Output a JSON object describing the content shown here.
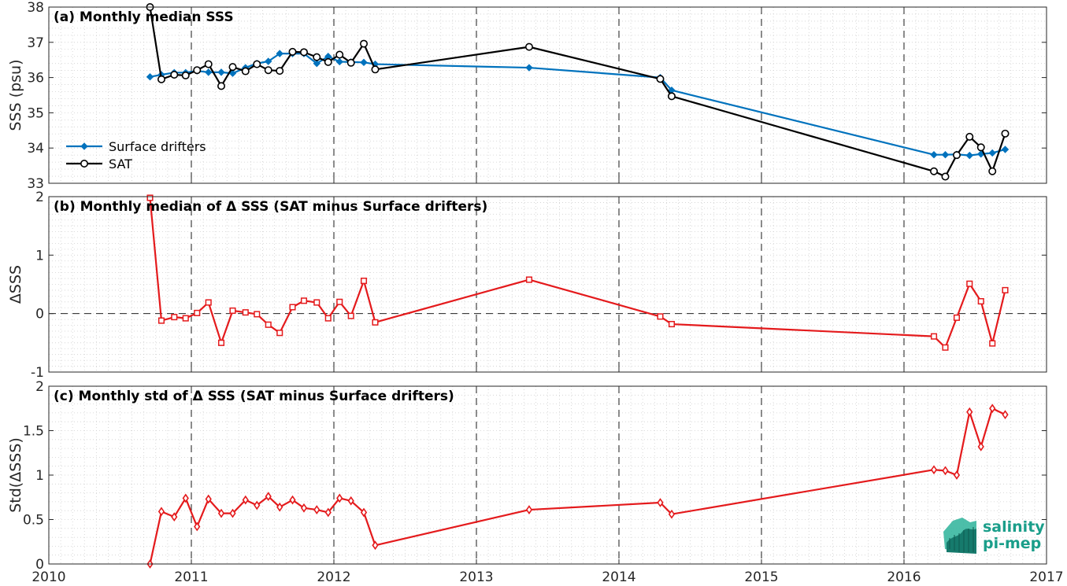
{
  "colors": {
    "drifters": "#0072bd",
    "sat": "#000000",
    "delta": "#e41a1c",
    "logo": "#1a9e8a"
  },
  "logo": {
    "line1": "salinity",
    "line2": "pi-mep"
  },
  "chart_data": [
    {
      "type": "line",
      "title": "(a) Monthly median SSS",
      "ylabel": "SSS (psu)",
      "xlim": [
        2010,
        2017
      ],
      "ylim": [
        33,
        38
      ],
      "xticks": [
        2010,
        2011,
        2012,
        2013,
        2014,
        2015,
        2016,
        2017
      ],
      "yticks": [
        33,
        34,
        35,
        36,
        37,
        38
      ],
      "grid": "minor-dotted",
      "legend_position": "bottom-left",
      "series": [
        {
          "name": "Surface drifters",
          "marker": "diamond",
          "x": [
            2010.71,
            2010.79,
            2010.88,
            2010.96,
            2011.04,
            2011.12,
            2011.21,
            2011.29,
            2011.38,
            2011.46,
            2011.54,
            2011.62,
            2011.71,
            2011.79,
            2011.88,
            2011.96,
            2012.04,
            2012.12,
            2012.21,
            2012.29,
            2013.37,
            2014.29,
            2014.37,
            2016.21,
            2016.29,
            2016.37,
            2016.46,
            2016.54,
            2016.62,
            2016.71
          ],
          "y": [
            36.02,
            36.08,
            36.14,
            36.14,
            36.19,
            36.15,
            36.15,
            36.12,
            36.28,
            36.4,
            36.46,
            36.68,
            36.68,
            36.68,
            36.4,
            36.6,
            36.45,
            36.44,
            36.43,
            36.38,
            36.28,
            36.0,
            35.64,
            33.81,
            33.81,
            33.82,
            33.79,
            33.83,
            33.86,
            33.96
          ]
        },
        {
          "name": "SAT",
          "marker": "circle",
          "x": [
            2010.71,
            2010.79,
            2010.88,
            2010.96,
            2011.04,
            2011.12,
            2011.21,
            2011.29,
            2011.38,
            2011.46,
            2011.54,
            2011.62,
            2011.71,
            2011.79,
            2011.88,
            2011.96,
            2012.04,
            2012.12,
            2012.21,
            2012.29,
            2013.37,
            2014.29,
            2014.37,
            2016.21,
            2016.29,
            2016.37,
            2016.46,
            2016.54,
            2016.62,
            2016.71
          ],
          "y": [
            38.0,
            35.95,
            36.08,
            36.06,
            36.21,
            36.38,
            35.76,
            36.3,
            36.18,
            36.38,
            36.21,
            36.19,
            36.73,
            36.72,
            36.58,
            36.44,
            36.65,
            36.42,
            36.96,
            36.23,
            36.87,
            35.96,
            35.47,
            33.34,
            33.19,
            33.8,
            34.32,
            34.02,
            33.34,
            34.41
          ]
        }
      ]
    },
    {
      "type": "line",
      "title": "(b) Monthly median of Δ SSS (SAT minus Surface drifters)",
      "ylabel": "ΔSSS",
      "xlim": [
        2010,
        2017
      ],
      "ylim": [
        -1,
        2
      ],
      "xticks": [
        2010,
        2011,
        2012,
        2013,
        2014,
        2015,
        2016,
        2017
      ],
      "yticks": [
        -1,
        0,
        1,
        2
      ],
      "grid": "minor-dotted",
      "zero_line": "dashed",
      "series": [
        {
          "marker": "square",
          "x": [
            2010.71,
            2010.79,
            2010.88,
            2010.96,
            2011.04,
            2011.12,
            2011.21,
            2011.29,
            2011.38,
            2011.46,
            2011.54,
            2011.62,
            2011.71,
            2011.79,
            2011.88,
            2011.96,
            2012.04,
            2012.12,
            2012.21,
            2012.29,
            2013.37,
            2014.29,
            2014.37,
            2016.21,
            2016.29,
            2016.37,
            2016.46,
            2016.54,
            2016.62,
            2016.71
          ],
          "y": [
            1.98,
            -0.12,
            -0.06,
            -0.08,
            0.01,
            0.19,
            -0.5,
            0.05,
            0.02,
            -0.01,
            -0.19,
            -0.33,
            0.11,
            0.22,
            0.19,
            -0.08,
            0.2,
            -0.04,
            0.56,
            -0.15,
            0.58,
            -0.05,
            -0.18,
            -0.39,
            -0.58,
            -0.07,
            0.51,
            0.21,
            -0.51,
            0.4
          ]
        }
      ]
    },
    {
      "type": "line",
      "title": "(c) Monthly std of Δ SSS (SAT minus Surface drifters)",
      "ylabel": "Std(ΔSSS)",
      "xlim": [
        2010,
        2017
      ],
      "ylim": [
        0,
        2
      ],
      "xticks": [
        2010,
        2011,
        2012,
        2013,
        2014,
        2015,
        2016,
        2017
      ],
      "yticks": [
        0,
        0.5,
        1,
        1.5,
        2
      ],
      "grid": "minor-dotted",
      "series": [
        {
          "marker": "diamond",
          "x": [
            2010.71,
            2010.79,
            2010.88,
            2010.96,
            2011.04,
            2011.12,
            2011.21,
            2011.29,
            2011.38,
            2011.46,
            2011.54,
            2011.62,
            2011.71,
            2011.79,
            2011.88,
            2011.96,
            2012.04,
            2012.12,
            2012.21,
            2012.29,
            2013.37,
            2014.29,
            2014.37,
            2016.21,
            2016.29,
            2016.37,
            2016.46,
            2016.54,
            2016.62,
            2016.71
          ],
          "y": [
            0.0,
            0.59,
            0.53,
            0.74,
            0.42,
            0.73,
            0.57,
            0.57,
            0.72,
            0.66,
            0.76,
            0.64,
            0.72,
            0.63,
            0.61,
            0.58,
            0.74,
            0.71,
            0.58,
            0.21,
            0.61,
            0.69,
            0.56,
            1.06,
            1.05,
            1.0,
            1.71,
            1.32,
            1.75,
            1.68
          ]
        }
      ]
    }
  ]
}
